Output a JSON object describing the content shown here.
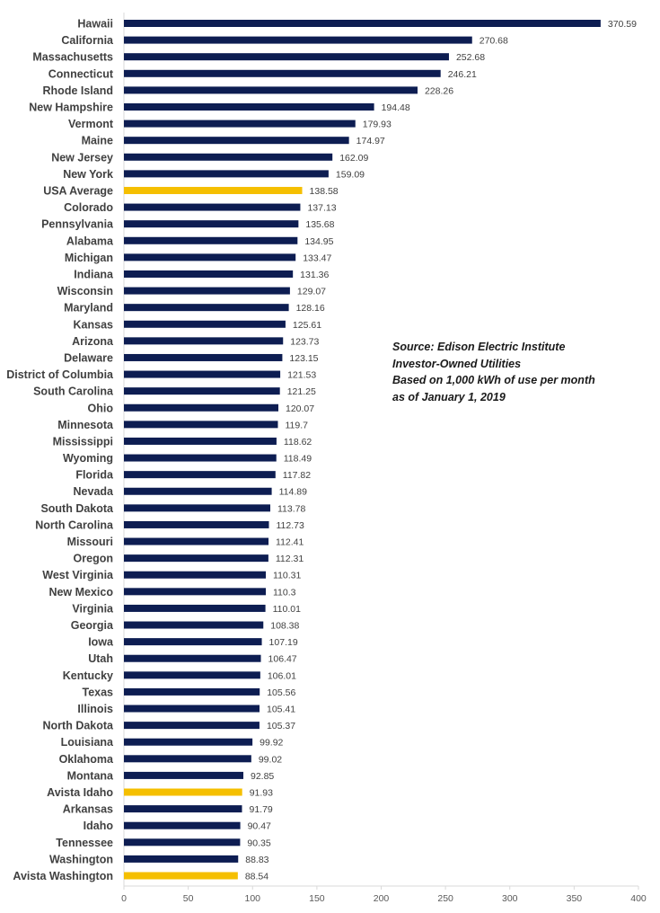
{
  "chart_data": {
    "type": "bar",
    "orientation": "horizontal",
    "categories": [
      "Hawaii",
      "California",
      "Massachusetts",
      "Connecticut",
      "Rhode Island",
      "New Hampshire",
      "Vermont",
      "Maine",
      "New Jersey",
      "New York",
      "USA Average",
      "Colorado",
      "Pennsylvania",
      "Alabama",
      "Michigan",
      "Indiana",
      "Wisconsin",
      "Maryland",
      "Kansas",
      "Arizona",
      "Delaware",
      "District of Columbia",
      "South Carolina",
      "Ohio",
      "Minnesota",
      "Mississippi",
      "Wyoming",
      "Florida",
      "Nevada",
      "South Dakota",
      "North Carolina",
      "Missouri",
      "Oregon",
      "West Virginia",
      "New Mexico",
      "Virginia",
      "Georgia",
      "Iowa",
      "Utah",
      "Kentucky",
      "Texas",
      "Illinois",
      "North Dakota",
      "Louisiana",
      "Oklahoma",
      "Montana",
      "Avista Idaho",
      "Arkansas",
      "Idaho",
      "Tennessee",
      "Washington",
      "Avista Washington"
    ],
    "values": [
      370.59,
      270.68,
      252.68,
      246.21,
      228.26,
      194.48,
      179.93,
      174.97,
      162.09,
      159.09,
      138.58,
      137.13,
      135.68,
      134.95,
      133.47,
      131.36,
      129.07,
      128.16,
      125.61,
      123.73,
      123.15,
      121.53,
      121.25,
      120.07,
      119.7,
      118.62,
      118.49,
      117.82,
      114.89,
      113.78,
      112.73,
      112.41,
      112.31,
      110.31,
      110.3,
      110.01,
      108.38,
      107.19,
      106.47,
      106.01,
      105.56,
      105.41,
      105.37,
      99.92,
      99.02,
      92.85,
      91.93,
      91.79,
      90.47,
      90.35,
      88.83,
      88.54
    ],
    "value_labels": [
      "370.59",
      "270.68",
      "252.68",
      "246.21",
      "228.26",
      "194.48",
      "179.93",
      "174.97",
      "162.09",
      "159.09",
      "138.58",
      "137.13",
      "135.68",
      "134.95",
      "133.47",
      "131.36",
      "129.07",
      "128.16",
      "125.61",
      "123.73",
      "123.15",
      "121.53",
      "121.25",
      "120.07",
      "119.7",
      "118.62",
      "118.49",
      "117.82",
      "114.89",
      "113.78",
      "112.73",
      "112.41",
      "112.31",
      "110.31",
      "110.3",
      "110.01",
      "108.38",
      "107.19",
      "106.47",
      "106.01",
      "105.56",
      "105.41",
      "105.37",
      "99.92",
      "99.02",
      "92.85",
      "91.93",
      "91.79",
      "90.47",
      "90.35",
      "88.83",
      "88.54"
    ],
    "highlighted": [
      "USA Average",
      "Avista Idaho",
      "Avista Washington"
    ],
    "colors": {
      "default": "#0d1d52",
      "highlight": "#f5bf00",
      "axis": "#d9d9d9"
    },
    "xlim": [
      0,
      400
    ],
    "xticks": [
      "0",
      "50",
      "100",
      "150",
      "200",
      "250",
      "300",
      "350",
      "400"
    ],
    "title": "",
    "xlabel": "",
    "ylabel": "",
    "grid": false,
    "legend": "none"
  },
  "annotation": {
    "lines": [
      "Source:  Edison Electric Institute",
      "Investor-Owned Utilities",
      "Based on 1,000  kWh of use per month",
      "as of January 1, 2019"
    ]
  }
}
